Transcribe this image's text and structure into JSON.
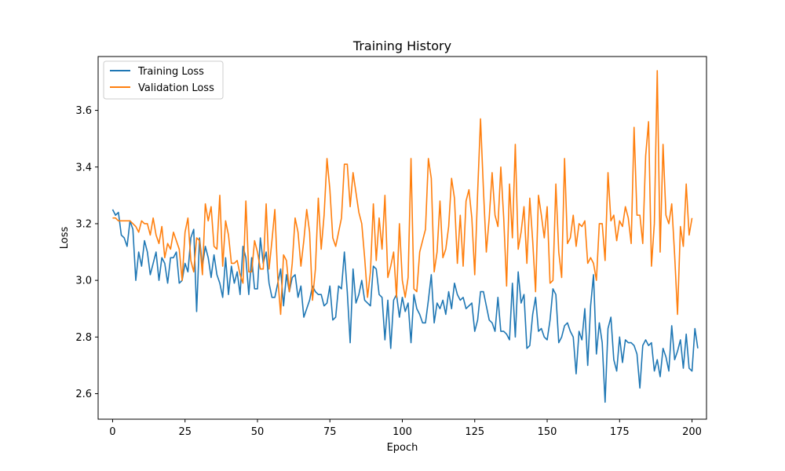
{
  "chart_data": {
    "type": "line",
    "title": "Training History",
    "xlabel": "Epoch",
    "ylabel": "Loss",
    "xlim": [
      -5,
      205
    ],
    "ylim": [
      2.51,
      3.79
    ],
    "xticks": [
      0,
      25,
      50,
      75,
      100,
      125,
      150,
      175,
      200
    ],
    "yticks": [
      2.6,
      2.8,
      3.0,
      3.2,
      3.4,
      3.6
    ],
    "grid": false,
    "legend": "top-left",
    "series": [
      {
        "name": "Training Loss",
        "color": "#1f77b4",
        "values": [
          3.25,
          3.23,
          3.24,
          3.16,
          3.15,
          3.12,
          3.21,
          3.18,
          3.0,
          3.1,
          3.05,
          3.14,
          3.1,
          3.02,
          3.06,
          3.1,
          3.0,
          3.08,
          3.06,
          2.99,
          3.08,
          3.08,
          3.1,
          2.99,
          3.0,
          3.06,
          3.03,
          3.15,
          3.18,
          2.89,
          3.15,
          3.05,
          3.12,
          3.08,
          3.01,
          3.09,
          3.02,
          2.99,
          2.94,
          3.08,
          2.95,
          3.05,
          2.99,
          3.03,
          2.95,
          3.12,
          3.08,
          2.95,
          3.08,
          2.97,
          2.97,
          3.15,
          3.06,
          3.1,
          2.99,
          2.94,
          2.94,
          2.99,
          3.04,
          2.91,
          3.02,
          2.96,
          3.01,
          3.02,
          2.94,
          2.98,
          2.87,
          2.9,
          2.93,
          2.98,
          2.96,
          2.95,
          2.95,
          2.91,
          2.92,
          2.98,
          2.86,
          2.87,
          2.98,
          2.97,
          3.1,
          2.96,
          2.78,
          3.04,
          2.92,
          2.95,
          3.0,
          2.93,
          2.92,
          2.91,
          3.05,
          3.04,
          2.95,
          2.94,
          2.79,
          2.93,
          2.76,
          2.93,
          2.95,
          2.87,
          2.94,
          2.89,
          2.92,
          2.78,
          2.95,
          2.9,
          2.88,
          2.85,
          2.85,
          2.93,
          3.02,
          2.85,
          2.92,
          2.9,
          2.93,
          2.88,
          2.96,
          2.9,
          2.99,
          2.95,
          2.93,
          2.94,
          2.9,
          2.91,
          2.92,
          2.82,
          2.86,
          2.96,
          2.96,
          2.91,
          2.86,
          2.85,
          2.82,
          2.94,
          2.82,
          2.82,
          2.81,
          2.79,
          2.99,
          2.8,
          3.03,
          2.92,
          2.95,
          2.76,
          2.77,
          2.88,
          2.94,
          2.82,
          2.83,
          2.8,
          2.79,
          2.86,
          2.97,
          2.95,
          2.78,
          2.8,
          2.84,
          2.85,
          2.82,
          2.8,
          2.67,
          2.82,
          2.79,
          2.9,
          2.7,
          2.91,
          3.02,
          2.74,
          2.85,
          2.78,
          2.57,
          2.83,
          2.87,
          2.72,
          2.68,
          2.8,
          2.71,
          2.79,
          2.78,
          2.78,
          2.77,
          2.74,
          2.62,
          2.77,
          2.79,
          2.77,
          2.78,
          2.68,
          2.72,
          2.66,
          2.76,
          2.73,
          2.68,
          2.84,
          2.72,
          2.75,
          2.79,
          2.69,
          2.81,
          2.69,
          2.68,
          2.83,
          2.76
        ]
      },
      {
        "name": "Validation Loss",
        "color": "#ff7f0e",
        "values": [
          3.22,
          3.22,
          3.21,
          3.21,
          3.21,
          3.21,
          3.21,
          3.2,
          3.19,
          3.17,
          3.21,
          3.2,
          3.2,
          3.16,
          3.22,
          3.16,
          3.13,
          3.19,
          3.08,
          3.13,
          3.11,
          3.17,
          3.14,
          3.11,
          3.0,
          3.17,
          3.22,
          3.07,
          3.03,
          3.15,
          3.14,
          3.02,
          3.27,
          3.21,
          3.26,
          3.12,
          3.11,
          3.3,
          3.05,
          3.21,
          3.16,
          3.06,
          3.06,
          3.07,
          3.02,
          2.99,
          3.28,
          3.03,
          3.03,
          3.14,
          3.1,
          3.04,
          3.04,
          3.27,
          3.04,
          3.14,
          3.25,
          3.01,
          2.88,
          3.09,
          3.07,
          2.96,
          3.06,
          3.22,
          3.17,
          3.05,
          3.14,
          3.25,
          3.17,
          2.93,
          3.04,
          3.29,
          3.11,
          3.23,
          3.43,
          3.32,
          3.15,
          3.12,
          3.17,
          3.22,
          3.41,
          3.41,
          3.26,
          3.38,
          3.31,
          3.24,
          3.2,
          3.08,
          2.94,
          3.03,
          3.27,
          3.07,
          3.22,
          3.11,
          3.3,
          3.01,
          3.05,
          3.1,
          2.94,
          3.2,
          3.0,
          2.94,
          3.01,
          3.43,
          2.97,
          2.96,
          3.1,
          3.14,
          3.18,
          3.43,
          3.36,
          3.03,
          3.1,
          3.28,
          3.08,
          3.11,
          3.19,
          3.36,
          3.29,
          3.06,
          3.23,
          3.05,
          3.28,
          3.32,
          3.22,
          3.02,
          3.31,
          3.57,
          3.32,
          3.1,
          3.22,
          3.38,
          3.23,
          3.19,
          3.4,
          3.22,
          2.98,
          3.34,
          3.15,
          3.48,
          3.11,
          3.17,
          3.26,
          3.06,
          3.29,
          3.14,
          2.96,
          3.3,
          3.23,
          3.15,
          3.26,
          2.99,
          3.0,
          3.34,
          3.1,
          3.01,
          3.43,
          3.13,
          3.15,
          3.23,
          3.12,
          3.2,
          3.19,
          3.21,
          3.06,
          3.08,
          3.06,
          3.0,
          3.2,
          3.2,
          3.07,
          3.38,
          3.21,
          3.23,
          3.14,
          3.21,
          3.19,
          3.26,
          3.22,
          3.13,
          3.54,
          3.23,
          3.23,
          3.13,
          3.44,
          3.56,
          3.05,
          3.2,
          3.74,
          3.1,
          3.48,
          3.23,
          3.2,
          3.27,
          3.09,
          2.88,
          3.19,
          3.12,
          3.34,
          3.16,
          3.22
        ]
      }
    ]
  }
}
